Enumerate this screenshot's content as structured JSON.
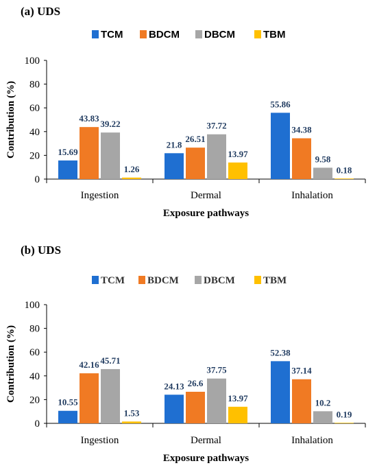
{
  "colors": {
    "TCM": "#1f6fd1",
    "BDCM": "#f07a23",
    "DBCM": "#a6a6a6",
    "TBM": "#ffc000"
  },
  "chart_data": [
    {
      "type": "bar",
      "title": "(a) UDS",
      "xlabel": "Exposure pathways",
      "ylabel": "Contribution (%)",
      "ylim": [
        0,
        100
      ],
      "yticks": [
        0,
        20,
        40,
        60,
        80,
        100
      ],
      "legend_position": "top-center",
      "grid": false,
      "categories": [
        "Ingestion",
        "Dermal",
        "Inhalation"
      ],
      "series": [
        {
          "name": "TCM",
          "values": [
            15.69,
            21.8,
            55.86
          ],
          "labels": [
            "15.69",
            "21.8",
            "55.86"
          ]
        },
        {
          "name": "BDCM",
          "values": [
            43.83,
            26.51,
            34.38
          ],
          "labels": [
            "43.83",
            "26.51",
            "34.38"
          ]
        },
        {
          "name": "DBCM",
          "values": [
            39.22,
            37.72,
            9.58
          ],
          "labels": [
            "39.22",
            "37.72",
            "9.58"
          ]
        },
        {
          "name": "TBM",
          "values": [
            1.26,
            13.97,
            0.18
          ],
          "labels": [
            "1.26",
            "13.97",
            "0.18"
          ]
        }
      ]
    },
    {
      "type": "bar",
      "title": "(b) UDS",
      "xlabel": "Exposure pathways",
      "ylabel": "Contribution (%)",
      "ylim": [
        0,
        100
      ],
      "yticks": [
        0,
        20,
        40,
        60,
        80,
        100
      ],
      "legend_position": "top-center",
      "grid": false,
      "categories": [
        "Ingestion",
        "Dermal",
        "Inhalation"
      ],
      "series": [
        {
          "name": "TCM",
          "values": [
            10.55,
            24.13,
            52.38
          ],
          "labels": [
            "10.55",
            "24.13",
            "52.38"
          ]
        },
        {
          "name": "BDCM",
          "values": [
            42.16,
            26.6,
            37.14
          ],
          "labels": [
            "42.16",
            "26.6",
            "37.14"
          ]
        },
        {
          "name": "DBCM",
          "values": [
            45.71,
            37.75,
            10.2
          ],
          "labels": [
            "45.71",
            "37.75",
            "10.2"
          ]
        },
        {
          "name": "TBM",
          "values": [
            1.53,
            13.97,
            0.19
          ],
          "labels": [
            "1.53",
            "13.97",
            "0.19"
          ]
        }
      ]
    }
  ]
}
